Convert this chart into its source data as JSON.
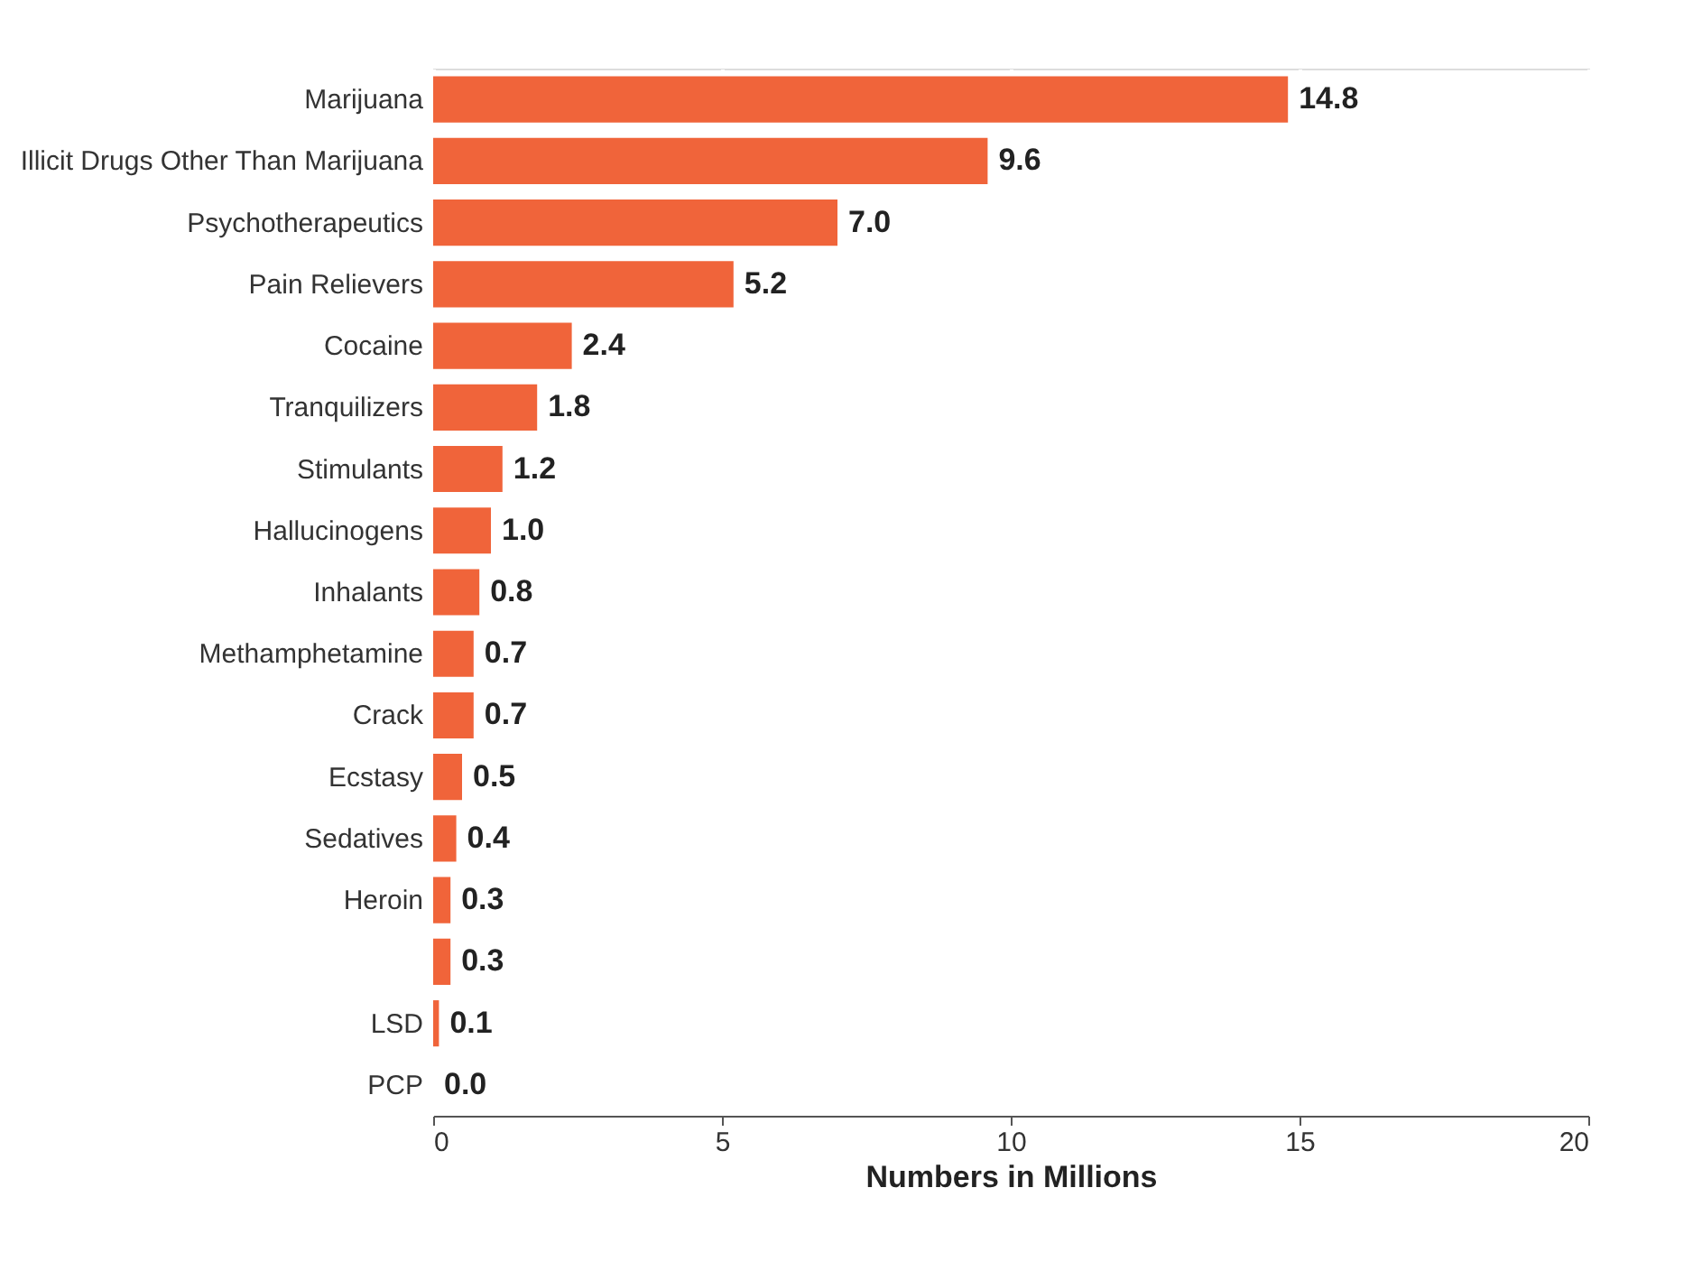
{
  "chart_data": {
    "type": "bar",
    "orientation": "horizontal",
    "xlabel": "Numbers in Millions",
    "categories": [
      "Marijuana",
      "Illicit Drugs Other Than Marijuana",
      "Psychotherapeutics",
      "Pain Relievers",
      "Cocaine",
      "Tranquilizers",
      "Stimulants",
      "Hallucinogens",
      "Inhalants",
      "Methamphetamine",
      "Crack",
      "Ecstasy",
      "Sedatives",
      "Heroin",
      null,
      "LSD",
      "PCP"
    ],
    "values": [
      14.8,
      9.6,
      7.0,
      5.2,
      2.4,
      1.8,
      1.2,
      1.0,
      0.8,
      0.7,
      0.7,
      0.5,
      0.4,
      0.3,
      0.3,
      0.1,
      0.0
    ],
    "value_labels": [
      "14.8",
      "9.6",
      "7.0",
      "5.2",
      "2.4",
      "1.8",
      "1.2",
      "1.0",
      "0.8",
      "0.7",
      "0.7",
      "0.5",
      "0.4",
      "0.3",
      "0.3",
      "0.1",
      "0.0"
    ],
    "color": "#f0643a",
    "xlim": [
      0,
      20
    ],
    "xticks": [
      0,
      5,
      10,
      15,
      20
    ],
    "grid": "x"
  }
}
